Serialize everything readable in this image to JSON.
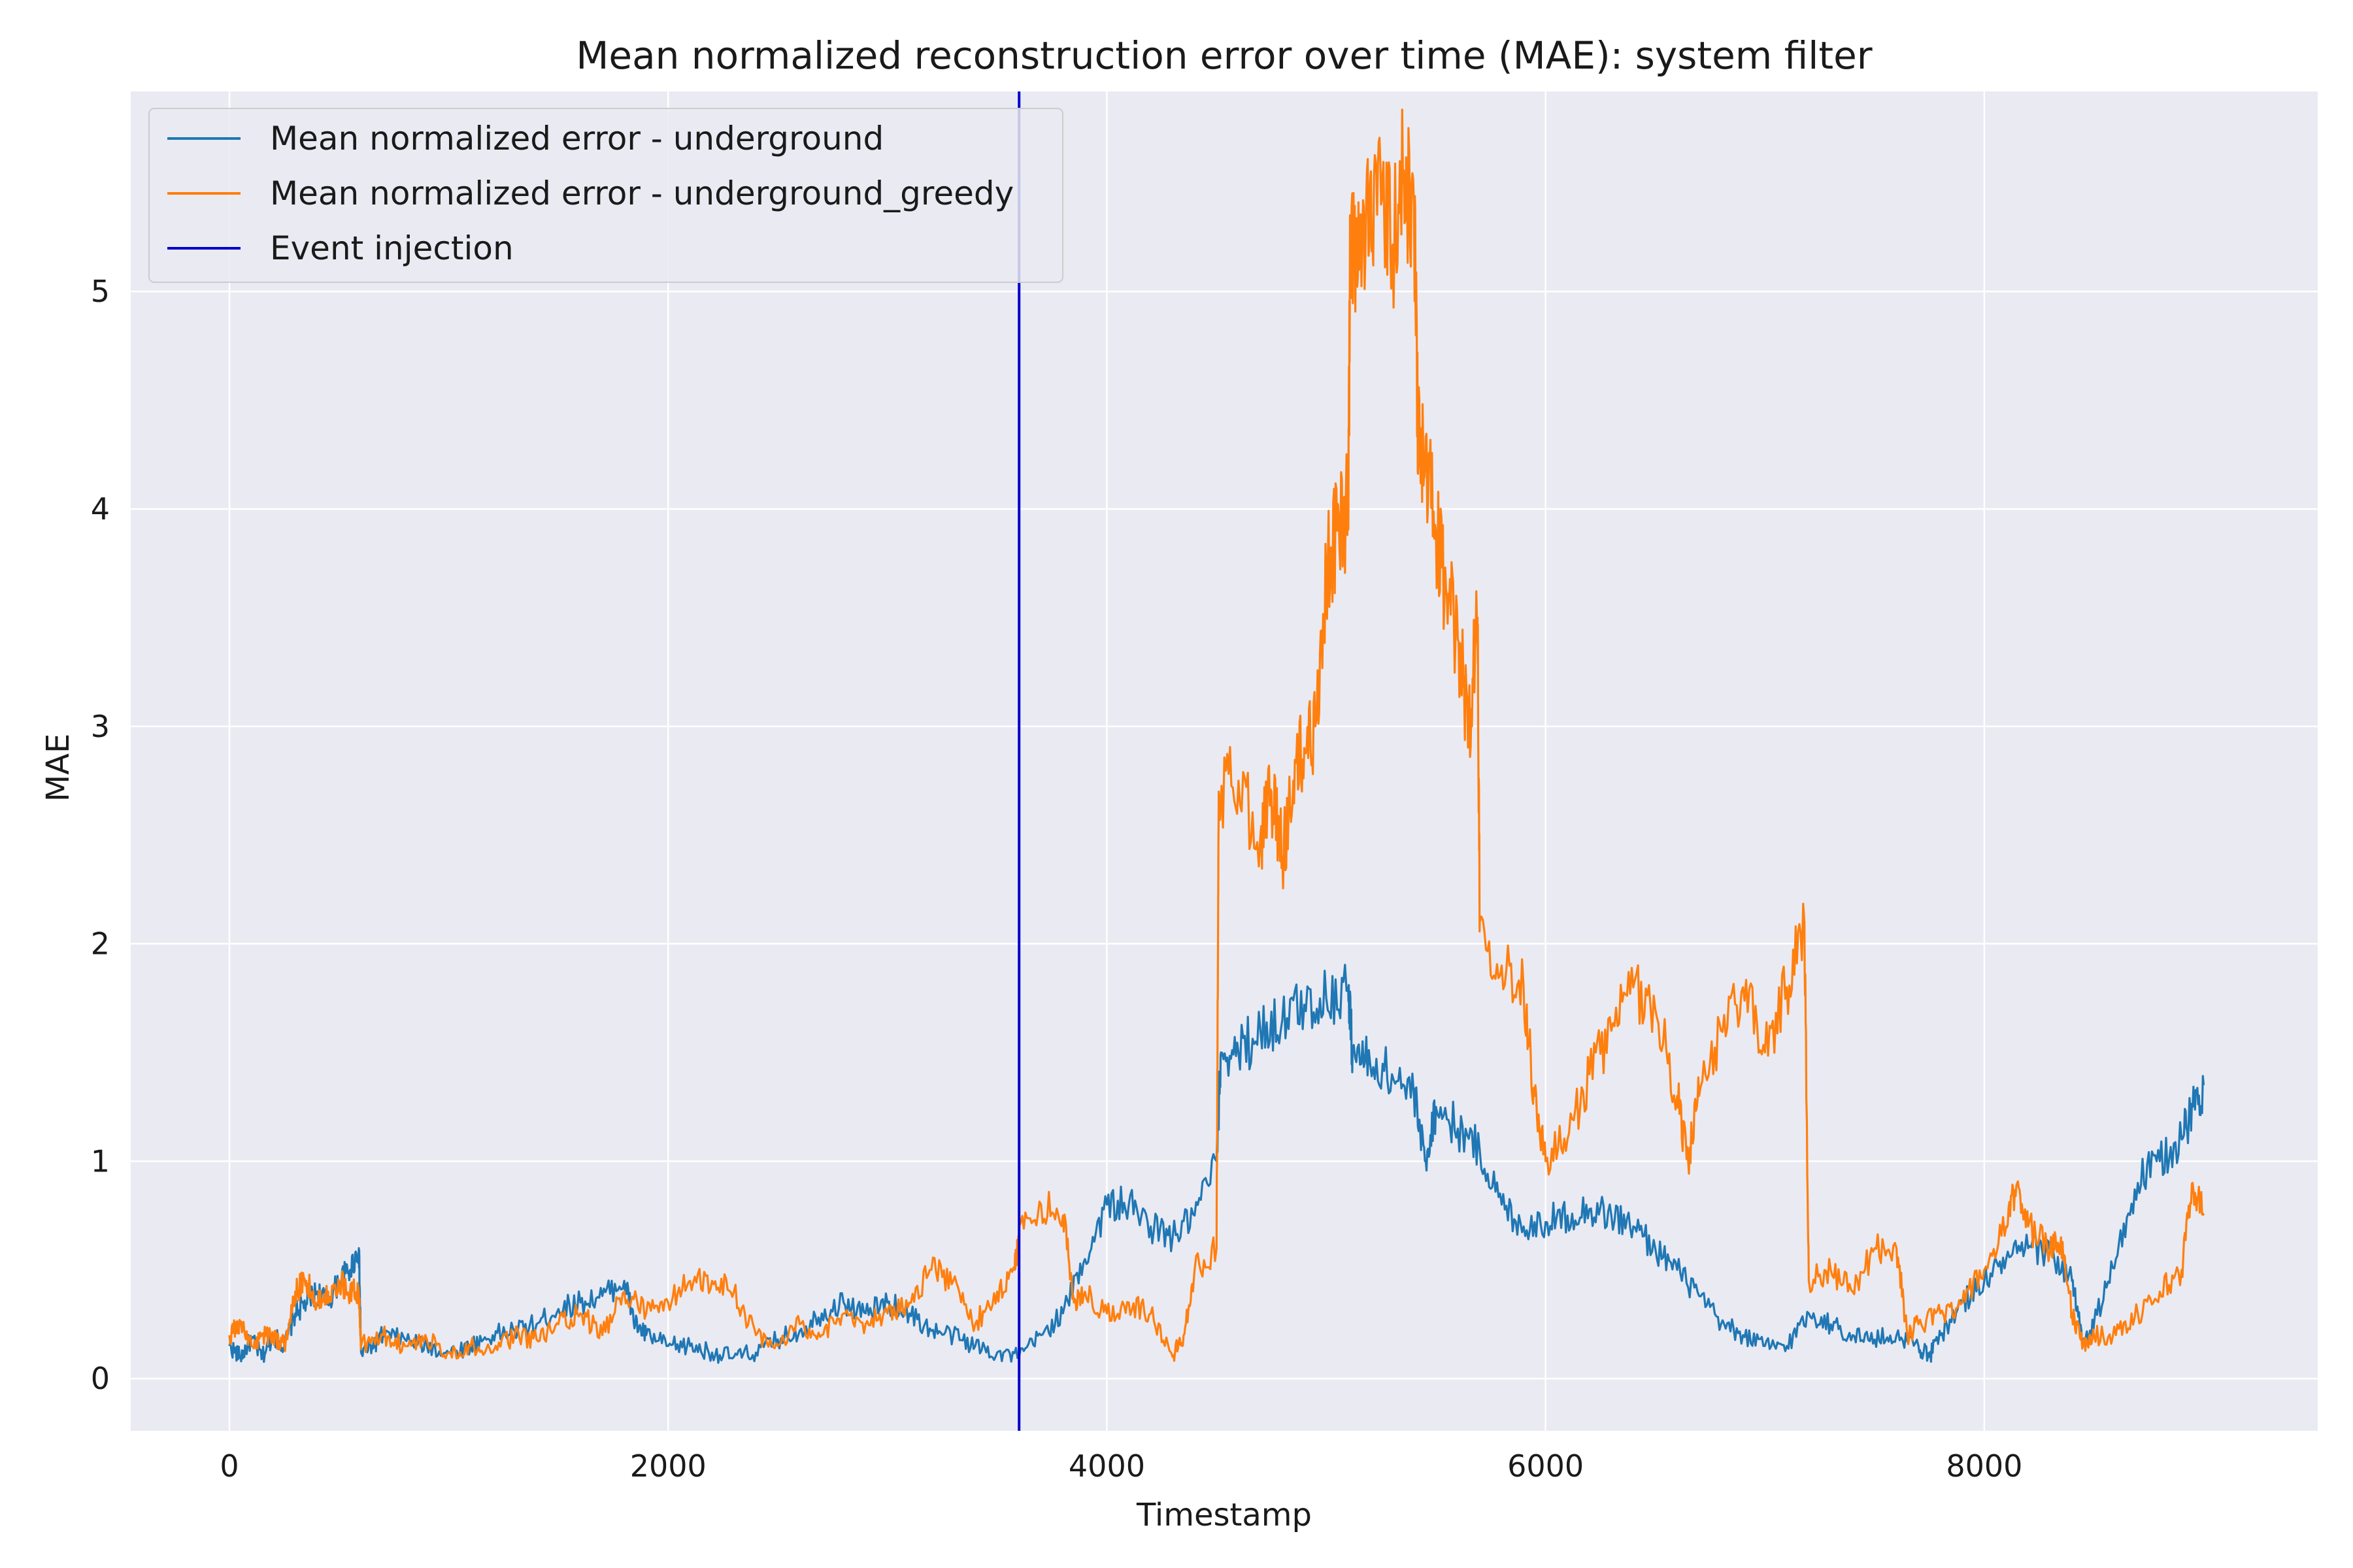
{
  "chart_data": {
    "type": "line",
    "title": "Mean normalized reconstruction error over time (MAE): system filter",
    "xlabel": "Timestamp",
    "ylabel": "MAE",
    "xlim": [
      -450,
      9520
    ],
    "ylim": [
      -0.24,
      5.92
    ],
    "xticks": [
      0,
      2000,
      4000,
      6000,
      8000
    ],
    "yticks": [
      0,
      1,
      2,
      3,
      4,
      5
    ],
    "grid": true,
    "background": "#eaeaf2",
    "legend_position": "upper-left",
    "series": [
      {
        "name": "Mean normalized error - underground",
        "color": "#1f77b4",
        "points": [
          [
            0,
            0.15
          ],
          [
            50,
            0.1
          ],
          [
            100,
            0.18
          ],
          [
            150,
            0.1
          ],
          [
            200,
            0.2
          ],
          [
            250,
            0.15
          ],
          [
            300,
            0.3
          ],
          [
            350,
            0.35
          ],
          [
            400,
            0.4
          ],
          [
            450,
            0.35
          ],
          [
            500,
            0.45
          ],
          [
            550,
            0.5
          ],
          [
            590,
            0.6
          ],
          [
            600,
            0.12
          ],
          [
            650,
            0.15
          ],
          [
            700,
            0.2
          ],
          [
            800,
            0.18
          ],
          [
            900,
            0.15
          ],
          [
            1000,
            0.12
          ],
          [
            1100,
            0.15
          ],
          [
            1200,
            0.2
          ],
          [
            1300,
            0.22
          ],
          [
            1400,
            0.25
          ],
          [
            1500,
            0.32
          ],
          [
            1600,
            0.35
          ],
          [
            1700,
            0.38
          ],
          [
            1800,
            0.45
          ],
          [
            1850,
            0.25
          ],
          [
            1900,
            0.2
          ],
          [
            2000,
            0.15
          ],
          [
            2100,
            0.15
          ],
          [
            2200,
            0.12
          ],
          [
            2300,
            0.1
          ],
          [
            2400,
            0.12
          ],
          [
            2500,
            0.18
          ],
          [
            2600,
            0.22
          ],
          [
            2700,
            0.3
          ],
          [
            2800,
            0.35
          ],
          [
            2900,
            0.3
          ],
          [
            3000,
            0.35
          ],
          [
            3100,
            0.3
          ],
          [
            3200,
            0.22
          ],
          [
            3300,
            0.2
          ],
          [
            3400,
            0.15
          ],
          [
            3500,
            0.12
          ],
          [
            3600,
            0.1
          ],
          [
            3700,
            0.2
          ],
          [
            3800,
            0.3
          ],
          [
            3900,
            0.55
          ],
          [
            4000,
            0.8
          ],
          [
            4100,
            0.8
          ],
          [
            4200,
            0.7
          ],
          [
            4300,
            0.65
          ],
          [
            4400,
            0.75
          ],
          [
            4500,
            1.0
          ],
          [
            4520,
            1.5
          ],
          [
            4600,
            1.5
          ],
          [
            4700,
            1.6
          ],
          [
            4800,
            1.65
          ],
          [
            4900,
            1.72
          ],
          [
            5000,
            1.75
          ],
          [
            5100,
            1.8
          ],
          [
            5120,
            1.5
          ],
          [
            5200,
            1.45
          ],
          [
            5300,
            1.4
          ],
          [
            5400,
            1.3
          ],
          [
            5450,
            1.0
          ],
          [
            5500,
            1.25
          ],
          [
            5600,
            1.15
          ],
          [
            5700,
            1.05
          ],
          [
            5800,
            0.8
          ],
          [
            5900,
            0.7
          ],
          [
            6000,
            0.72
          ],
          [
            6100,
            0.75
          ],
          [
            6200,
            0.78
          ],
          [
            6300,
            0.75
          ],
          [
            6400,
            0.7
          ],
          [
            6500,
            0.6
          ],
          [
            6600,
            0.5
          ],
          [
            6700,
            0.38
          ],
          [
            6800,
            0.25
          ],
          [
            6900,
            0.2
          ],
          [
            7000,
            0.15
          ],
          [
            7100,
            0.15
          ],
          [
            7200,
            0.3
          ],
          [
            7300,
            0.25
          ],
          [
            7400,
            0.2
          ],
          [
            7500,
            0.18
          ],
          [
            7600,
            0.2
          ],
          [
            7700,
            0.15
          ],
          [
            7750,
            0.1
          ],
          [
            7800,
            0.2
          ],
          [
            7900,
            0.35
          ],
          [
            8000,
            0.45
          ],
          [
            8100,
            0.55
          ],
          [
            8200,
            0.6
          ],
          [
            8300,
            0.58
          ],
          [
            8400,
            0.45
          ],
          [
            8450,
            0.15
          ],
          [
            8500,
            0.25
          ],
          [
            8600,
            0.55
          ],
          [
            8700,
            0.9
          ],
          [
            8800,
            1.0
          ],
          [
            8900,
            1.1
          ],
          [
            8950,
            1.25
          ],
          [
            9000,
            1.35
          ]
        ]
      },
      {
        "name": "Mean normalized error - underground_greedy",
        "color": "#ff7f0e",
        "points": [
          [
            0,
            0.2
          ],
          [
            50,
            0.25
          ],
          [
            100,
            0.15
          ],
          [
            150,
            0.2
          ],
          [
            200,
            0.2
          ],
          [
            250,
            0.15
          ],
          [
            300,
            0.4
          ],
          [
            350,
            0.45
          ],
          [
            400,
            0.35
          ],
          [
            450,
            0.4
          ],
          [
            500,
            0.45
          ],
          [
            550,
            0.4
          ],
          [
            590,
            0.4
          ],
          [
            600,
            0.15
          ],
          [
            700,
            0.2
          ],
          [
            800,
            0.15
          ],
          [
            900,
            0.18
          ],
          [
            1000,
            0.12
          ],
          [
            1100,
            0.15
          ],
          [
            1200,
            0.12
          ],
          [
            1300,
            0.2
          ],
          [
            1400,
            0.18
          ],
          [
            1500,
            0.25
          ],
          [
            1600,
            0.3
          ],
          [
            1700,
            0.2
          ],
          [
            1800,
            0.4
          ],
          [
            1900,
            0.3
          ],
          [
            2000,
            0.35
          ],
          [
            2100,
            0.45
          ],
          [
            2200,
            0.45
          ],
          [
            2300,
            0.4
          ],
          [
            2400,
            0.2
          ],
          [
            2500,
            0.15
          ],
          [
            2600,
            0.25
          ],
          [
            2700,
            0.2
          ],
          [
            2800,
            0.3
          ],
          [
            2900,
            0.25
          ],
          [
            3000,
            0.3
          ],
          [
            3100,
            0.35
          ],
          [
            3200,
            0.5
          ],
          [
            3300,
            0.45
          ],
          [
            3400,
            0.25
          ],
          [
            3500,
            0.4
          ],
          [
            3580,
            0.5
          ],
          [
            3600,
            0.7
          ],
          [
            3700,
            0.8
          ],
          [
            3800,
            0.75
          ],
          [
            3850,
            0.35
          ],
          [
            3900,
            0.4
          ],
          [
            4000,
            0.3
          ],
          [
            4100,
            0.35
          ],
          [
            4200,
            0.3
          ],
          [
            4300,
            0.1
          ],
          [
            4350,
            0.2
          ],
          [
            4400,
            0.5
          ],
          [
            4500,
            0.6
          ],
          [
            4510,
            2.7
          ],
          [
            4600,
            2.75
          ],
          [
            4700,
            2.5
          ],
          [
            4750,
            2.7
          ],
          [
            4800,
            2.4
          ],
          [
            4850,
            2.75
          ],
          [
            4900,
            2.9
          ],
          [
            4950,
            3.0
          ],
          [
            5000,
            3.7
          ],
          [
            5050,
            3.9
          ],
          [
            5100,
            4.0
          ],
          [
            5110,
            5.2
          ],
          [
            5150,
            5.1
          ],
          [
            5200,
            5.5
          ],
          [
            5250,
            5.4
          ],
          [
            5300,
            5.2
          ],
          [
            5350,
            5.5
          ],
          [
            5400,
            5.4
          ],
          [
            5420,
            4.3
          ],
          [
            5450,
            4.2
          ],
          [
            5500,
            3.9
          ],
          [
            5550,
            3.6
          ],
          [
            5600,
            3.4
          ],
          [
            5650,
            3.0
          ],
          [
            5690,
            3.5
          ],
          [
            5700,
            2.1
          ],
          [
            5800,
            1.9
          ],
          [
            5900,
            1.8
          ],
          [
            5950,
            1.3
          ],
          [
            6000,
            1.0
          ],
          [
            6100,
            1.1
          ],
          [
            6200,
            1.4
          ],
          [
            6300,
            1.6
          ],
          [
            6400,
            1.8
          ],
          [
            6500,
            1.7
          ],
          [
            6600,
            1.3
          ],
          [
            6650,
            1.0
          ],
          [
            6700,
            1.3
          ],
          [
            6800,
            1.6
          ],
          [
            6900,
            1.8
          ],
          [
            7000,
            1.5
          ],
          [
            7100,
            1.8
          ],
          [
            7180,
            2.1
          ],
          [
            7200,
            0.45
          ],
          [
            7300,
            0.5
          ],
          [
            7400,
            0.4
          ],
          [
            7500,
            0.6
          ],
          [
            7600,
            0.6
          ],
          [
            7650,
            0.2
          ],
          [
            7700,
            0.25
          ],
          [
            7800,
            0.3
          ],
          [
            7900,
            0.35
          ],
          [
            8000,
            0.5
          ],
          [
            8100,
            0.7
          ],
          [
            8150,
            0.9
          ],
          [
            8200,
            0.7
          ],
          [
            8300,
            0.6
          ],
          [
            8350,
            0.65
          ],
          [
            8400,
            0.3
          ],
          [
            8450,
            0.15
          ],
          [
            8500,
            0.2
          ],
          [
            8600,
            0.2
          ],
          [
            8700,
            0.3
          ],
          [
            8800,
            0.4
          ],
          [
            8900,
            0.5
          ],
          [
            8950,
            0.9
          ],
          [
            9000,
            0.75
          ]
        ]
      },
      {
        "name": "Event injection",
        "color": "#0000cc",
        "type": "vline",
        "x": 3600
      }
    ]
  }
}
